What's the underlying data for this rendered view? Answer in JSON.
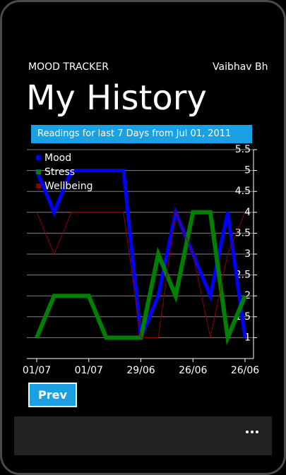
{
  "header": {
    "app_title": "MOOD TRACKER",
    "user": "Vaibhav Bh",
    "page_title": "My History"
  },
  "banner": "Readings for last 7 Days from Jul 01, 2011",
  "button": "Prev",
  "chart_data": {
    "type": "line",
    "categories": [
      "01/07",
      null,
      null,
      "01/07",
      null,
      null,
      "29/06",
      null,
      null,
      "26/06",
      null,
      null,
      "26/06"
    ],
    "series": [
      {
        "name": "Mood",
        "color": "#0000ff",
        "values": [
          5,
          4,
          5,
          5,
          5,
          5,
          1,
          2,
          4,
          3,
          2,
          4,
          1
        ]
      },
      {
        "name": "Stress",
        "color": "#008000",
        "values": [
          1,
          2,
          2,
          2,
          1,
          1,
          1,
          3,
          2,
          4,
          4,
          1,
          2
        ]
      },
      {
        "name": "Wellbeing",
        "color": "#8b0000",
        "values": [
          4,
          3,
          4,
          4,
          4,
          4,
          1,
          1,
          4,
          3,
          1,
          3,
          4
        ]
      }
    ],
    "ylim": [
      0.5,
      5.5
    ],
    "yticks": [
      5.5,
      5,
      4.5,
      4,
      3.5,
      3,
      2.5,
      2,
      1.5,
      1
    ],
    "grid": true,
    "legend": "top-left"
  }
}
